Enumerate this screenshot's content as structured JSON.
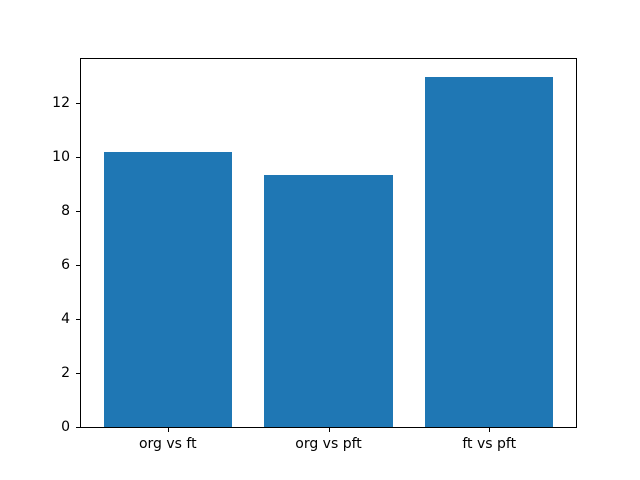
{
  "chart_data": {
    "type": "bar",
    "categories": [
      "org vs ft",
      "org vs pft",
      "ft vs pft"
    ],
    "values": [
      10.2,
      9.35,
      13.0
    ],
    "title": "",
    "xlabel": "",
    "ylabel": "",
    "yticks": [
      0,
      2,
      4,
      6,
      8,
      10,
      12
    ],
    "ylim": [
      0,
      13.65
    ],
    "xlim": [
      -0.54,
      2.54
    ],
    "bar_width": 0.8,
    "bar_color": "#1f77b4",
    "grid": false,
    "legend": "none",
    "background_color": "#ffffff",
    "spine_color": "#000000",
    "tick_label_color": "#000000"
  }
}
